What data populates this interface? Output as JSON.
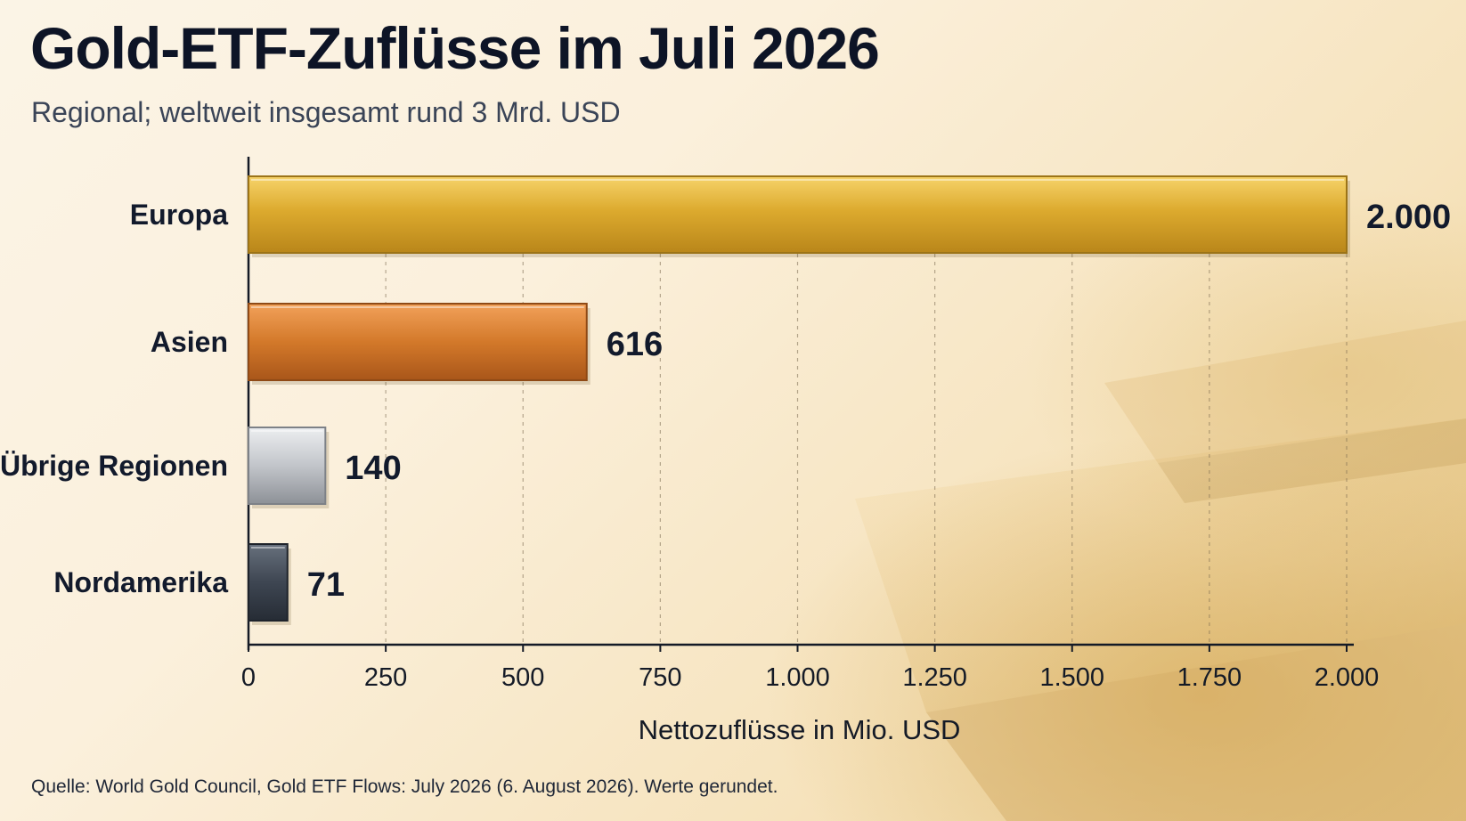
{
  "header": {
    "title": "Gold-ETF-Zuflüsse im Juli 2026",
    "subtitle": "Regional; weltweit insgesamt rund 3 Mrd. USD"
  },
  "footer": {
    "source": "Quelle: World Gold Council, Gold ETF Flows: July 2026 (6. August 2026). Werte gerundet."
  },
  "chart_data": {
    "type": "bar",
    "orientation": "horizontal",
    "title": "Gold-ETF-Zuflüsse im Juli 2026",
    "subtitle": "Regional; weltweit insgesamt rund 3 Mrd. USD",
    "xlabel": "Nettozuflüsse in Mio. USD",
    "ylabel": "",
    "categories": [
      "Europa",
      "Asien",
      "Übrige Regionen",
      "Nordamerika"
    ],
    "values": [
      2000,
      616,
      140,
      71
    ],
    "value_labels": [
      "2.000",
      "616",
      "140",
      "71"
    ],
    "xlim": [
      0,
      2000
    ],
    "x_ticks": [
      0,
      250,
      500,
      750,
      1000,
      1250,
      1500,
      1750,
      2000
    ],
    "x_tick_labels": [
      "0",
      "250",
      "500",
      "750",
      "1.000",
      "1.250",
      "1.500",
      "1.750",
      "2.000"
    ],
    "grid": "vertical dashed",
    "legend": "none",
    "bar_colors": [
      "#d9a72b",
      "#cf7a2a",
      "#b9bcc1",
      "#3c4450"
    ]
  }
}
